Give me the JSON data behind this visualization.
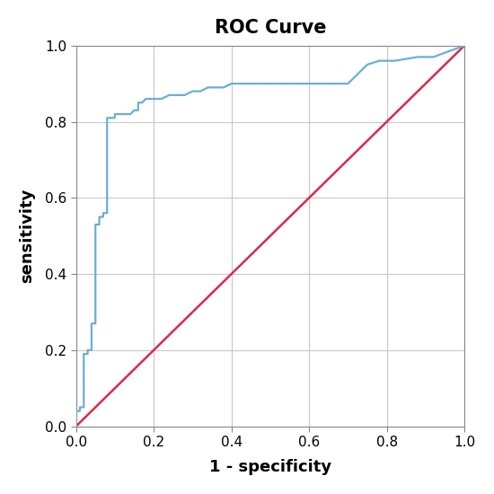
{
  "title": "ROC Curve",
  "xlabel": "1 - specificity",
  "ylabel": "sensitivity",
  "xlim": [
    0.0,
    1.0
  ],
  "ylim": [
    0.0,
    1.0
  ],
  "roc_color": "#6aaed6",
  "diagonal_color": "#d9294a",
  "plot_bg_color": "#ffffff",
  "fig_bg_color": "#ffffff",
  "grid_color": "#c8c8c8",
  "spine_color": "#888888",
  "title_fontsize": 15,
  "label_fontsize": 13,
  "tick_fontsize": 11,
  "roc_linewidth": 1.6,
  "diagonal_linewidth": 1.8,
  "roc_points_x": [
    0.0,
    0.0,
    0.01,
    0.01,
    0.02,
    0.02,
    0.03,
    0.03,
    0.04,
    0.04,
    0.05,
    0.05,
    0.06,
    0.06,
    0.07,
    0.07,
    0.08,
    0.08,
    0.09,
    0.09,
    0.1,
    0.1,
    0.11,
    0.11,
    0.12,
    0.13,
    0.14,
    0.15,
    0.16,
    0.16,
    0.17,
    0.18,
    0.19,
    0.2,
    0.22,
    0.24,
    0.26,
    0.28,
    0.3,
    0.32,
    0.34,
    0.36,
    0.38,
    0.4,
    0.42,
    0.44,
    0.46,
    0.5,
    0.55,
    0.6,
    0.62,
    0.65,
    0.7,
    0.75,
    0.78,
    0.82,
    0.88,
    0.92,
    1.0
  ],
  "roc_points_y": [
    0.0,
    0.04,
    0.04,
    0.05,
    0.05,
    0.19,
    0.19,
    0.2,
    0.2,
    0.27,
    0.27,
    0.53,
    0.53,
    0.55,
    0.55,
    0.56,
    0.56,
    0.81,
    0.81,
    0.81,
    0.81,
    0.82,
    0.82,
    0.82,
    0.82,
    0.82,
    0.82,
    0.83,
    0.83,
    0.85,
    0.85,
    0.86,
    0.86,
    0.86,
    0.86,
    0.87,
    0.87,
    0.87,
    0.88,
    0.88,
    0.89,
    0.89,
    0.89,
    0.9,
    0.9,
    0.9,
    0.9,
    0.9,
    0.9,
    0.9,
    0.9,
    0.9,
    0.9,
    0.95,
    0.96,
    0.96,
    0.97,
    0.97,
    1.0
  ]
}
